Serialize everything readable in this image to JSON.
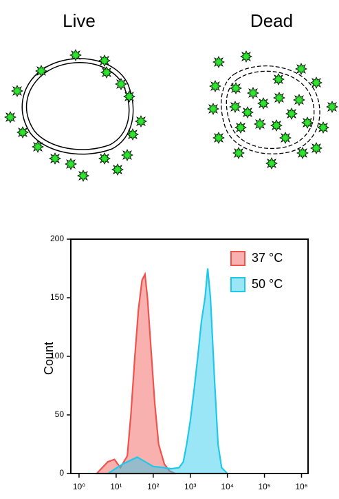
{
  "diagram": {
    "labels": [
      "Live",
      "Dead"
    ]
  },
  "chart_data": {
    "type": "area",
    "ylabel": "Count",
    "xscale": "log",
    "xlim": [
      0.6,
      1500000
    ],
    "ylim": [
      0,
      200
    ],
    "xticks": [
      {
        "value": 1,
        "label": "10⁰"
      },
      {
        "value": 10,
        "label": "10¹"
      },
      {
        "value": 100,
        "label": "10²"
      },
      {
        "value": 1000,
        "label": "10³"
      },
      {
        "value": 10000,
        "label": "10⁴"
      },
      {
        "value": 100000,
        "label": "10⁵"
      },
      {
        "value": 1000000,
        "label": "10⁶"
      }
    ],
    "yticks": [
      0,
      50,
      100,
      150,
      200
    ],
    "legend": "upper right",
    "series": [
      {
        "name": "37 °C",
        "color": "#f0524d",
        "x": [
          3,
          6,
          9,
          13,
          20,
          25,
          32,
          40,
          50,
          60,
          70,
          90,
          110,
          140,
          200,
          280,
          400
        ],
        "values": [
          0,
          10,
          12,
          5,
          15,
          50,
          100,
          140,
          165,
          170,
          150,
          100,
          60,
          25,
          8,
          2,
          0
        ]
      },
      {
        "name": "50 °C",
        "color": "#1ec8ea",
        "x": [
          6,
          15,
          37,
          100,
          200,
          300,
          500,
          650,
          800,
          1000,
          1250,
          1600,
          2000,
          2500,
          2950,
          3500,
          4500,
          5600,
          7000,
          10000
        ],
        "values": [
          0,
          8,
          14,
          6,
          5,
          4,
          5,
          10,
          25,
          45,
          70,
          100,
          130,
          150,
          175,
          150,
          80,
          25,
          5,
          0
        ]
      }
    ]
  }
}
